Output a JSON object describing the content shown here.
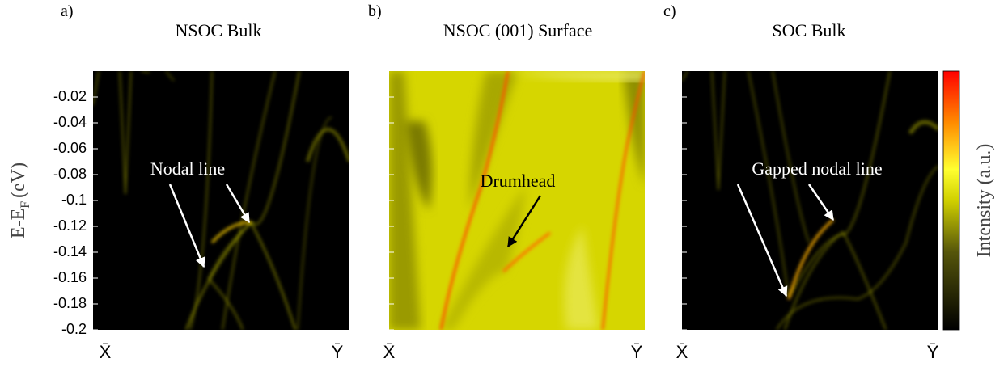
{
  "panels": [
    {
      "label": "a)",
      "title": "NSOC  Bulk",
      "annotation": "Nodal line"
    },
    {
      "label": "b)",
      "title": "NSOC  (001) Surface",
      "annotation": "Drumhead"
    },
    {
      "label": "c)",
      "title": "SOC  Bulk",
      "annotation": "Gapped nodal line"
    }
  ],
  "y_axis": {
    "label": "E-E",
    "label_sub": "F",
    "label_unit": "(eV)",
    "ylim": [
      -0.2,
      0
    ],
    "yticks": [
      -0.02,
      -0.04,
      -0.06,
      -0.08,
      -0.1,
      -0.12,
      -0.14,
      -0.16,
      -0.18,
      -0.2
    ]
  },
  "x_labels": [
    "X̄",
    "Ȳ"
  ],
  "colorbar": {
    "label": "Intensity (a.u.)"
  }
}
